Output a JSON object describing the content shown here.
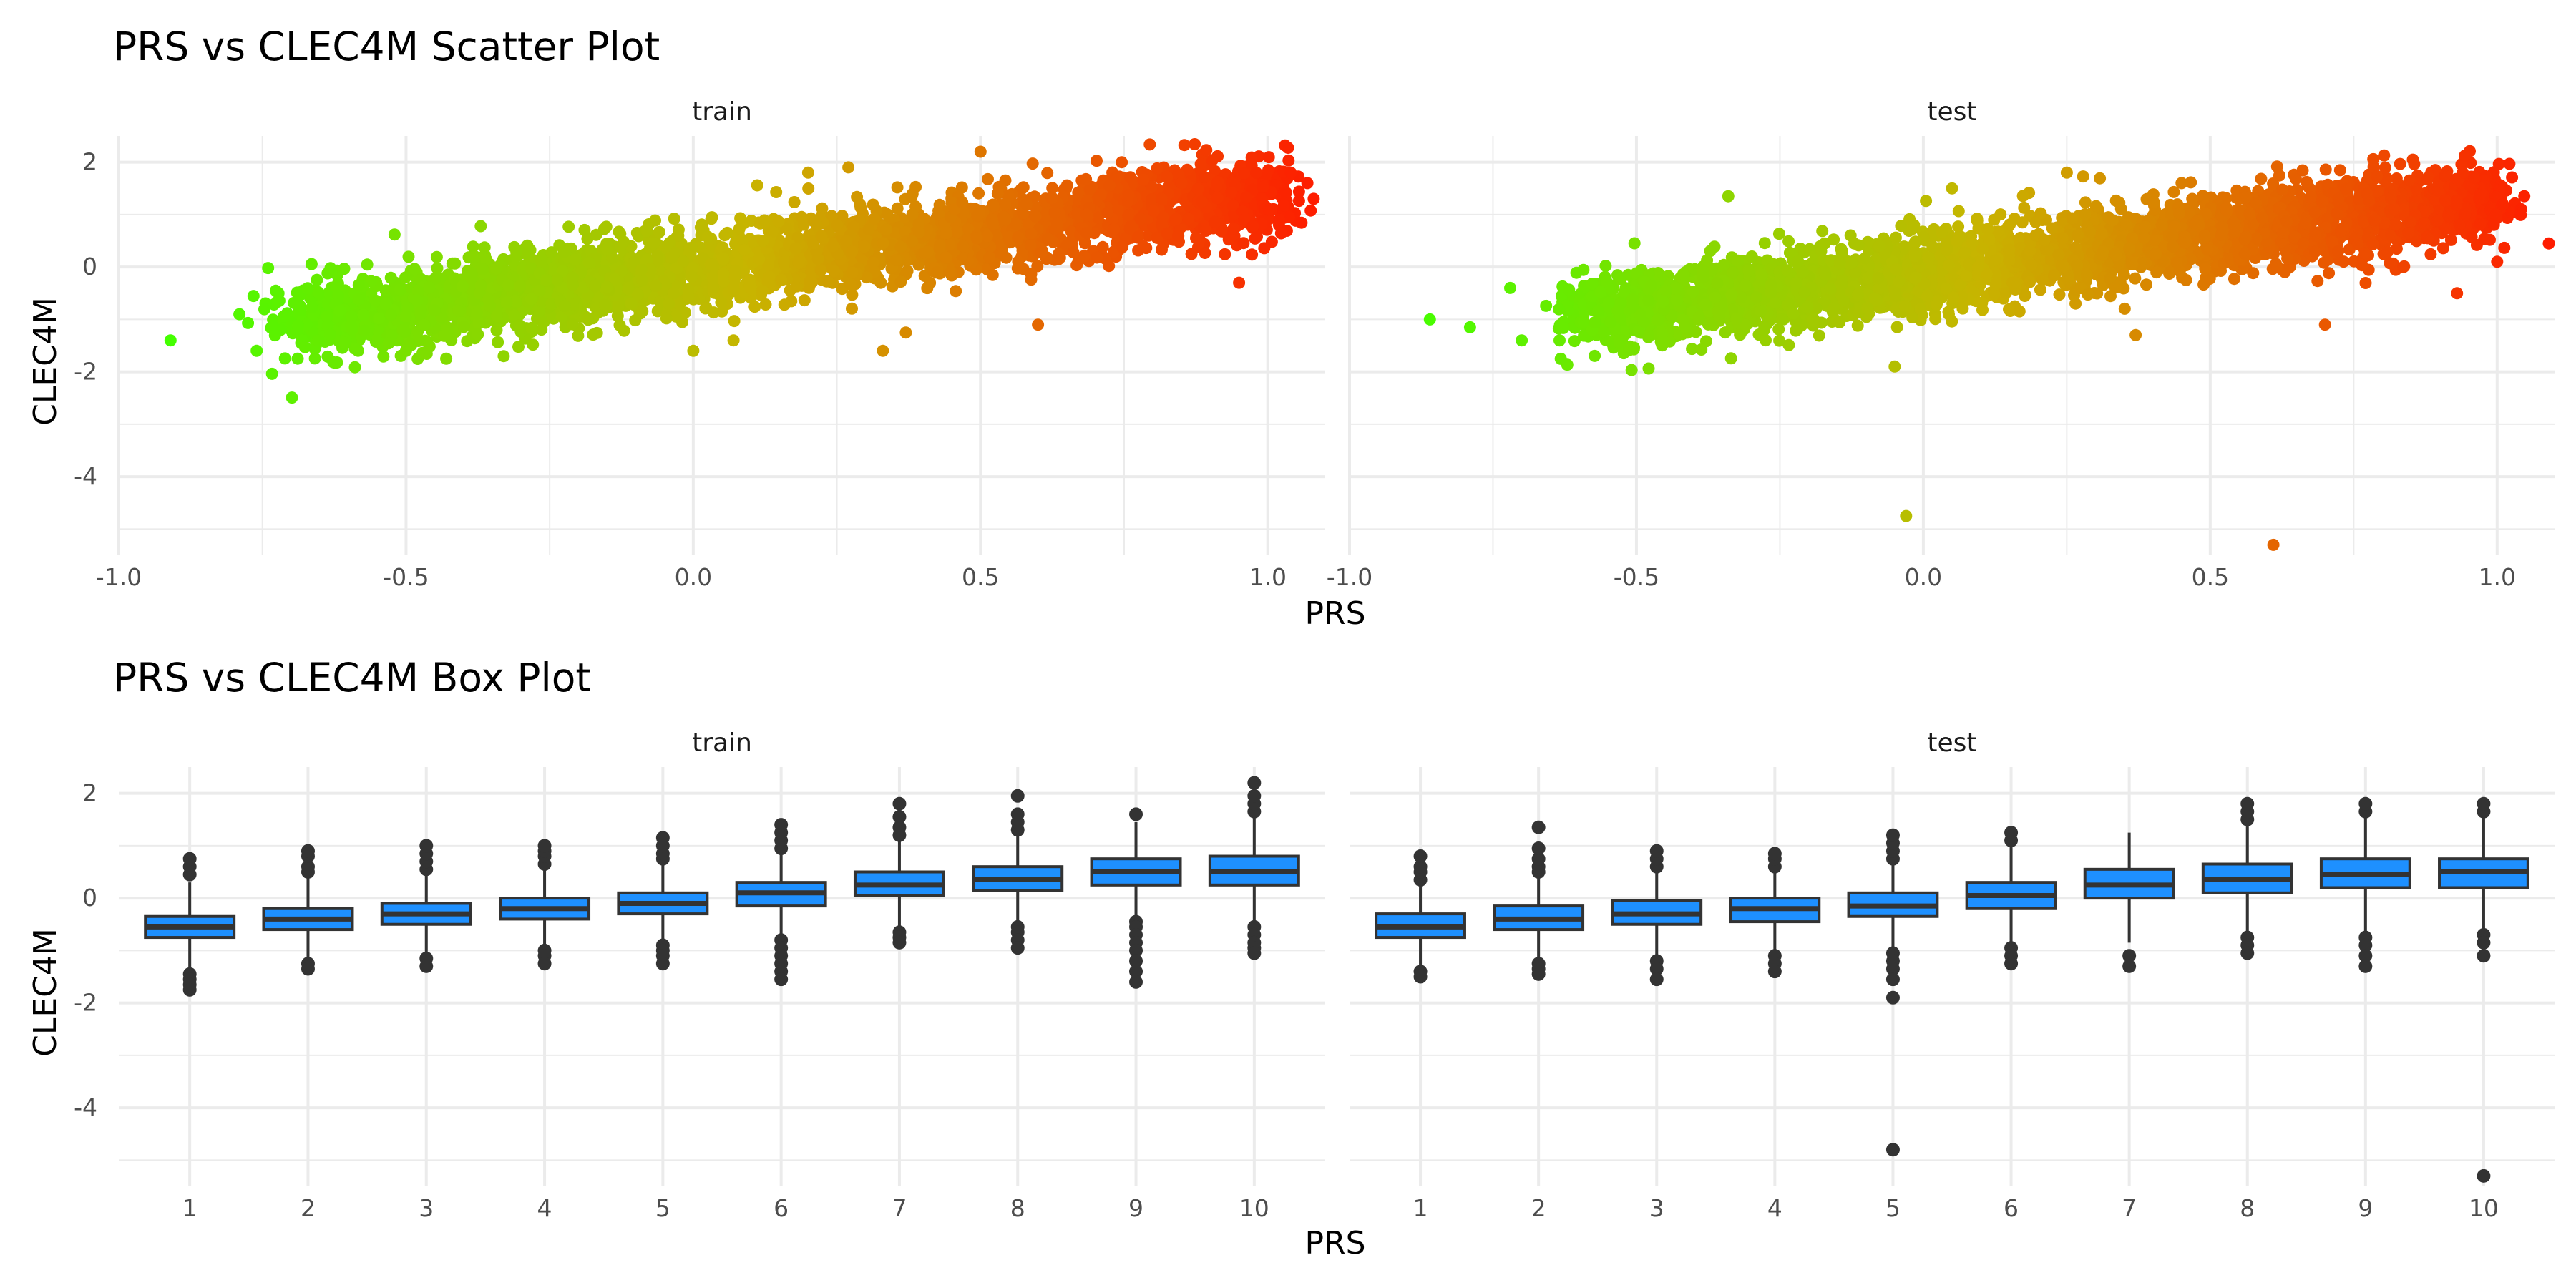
{
  "chart_data": [
    {
      "type": "scatter",
      "title": "PRS vs CLEC4M Scatter Plot",
      "xlabel": "PRS",
      "ylabel": "CLEC4M",
      "xlim": [
        -1.0,
        1.1
      ],
      "ylim": [
        -5.5,
        2.5
      ],
      "x_ticks": [
        -1.0,
        -0.5,
        0.0,
        0.5,
        1.0
      ],
      "x_tick_labels": [
        "-1.0",
        "-0.5",
        "0.0",
        "0.5",
        "1.0"
      ],
      "y_ticks": [
        -4,
        -2,
        0,
        2
      ],
      "y_tick_labels": [
        "-4",
        "-2",
        "0",
        "2"
      ],
      "color_scale": {
        "low": "#44ff00",
        "mid": "#c8b400",
        "high": "#ff1a00",
        "from_x": -0.9,
        "to_x": 1.1
      },
      "grid": true,
      "legend": "none",
      "facets": [
        {
          "name": "train",
          "trend": {
            "intercept": -0.05,
            "slope": 1.45,
            "x_range": [
              -0.7,
              1.03
            ],
            "spread": 0.38
          },
          "points": [
            [
              -0.91,
              -1.4
            ],
            [
              -0.79,
              -0.9
            ],
            [
              -0.76,
              -1.6
            ],
            [
              -0.74,
              -0.02
            ],
            [
              -0.52,
              0.62
            ],
            [
              -0.5,
              -1.6
            ],
            [
              -0.43,
              -1.75
            ],
            [
              -0.37,
              0.78
            ],
            [
              -0.33,
              -1.7
            ],
            [
              0.0,
              -1.6
            ],
            [
              0.07,
              -1.4
            ],
            [
              0.2,
              1.8
            ],
            [
              0.27,
              1.9
            ],
            [
              0.33,
              -1.6
            ],
            [
              0.37,
              -1.25
            ],
            [
              0.5,
              2.2
            ],
            [
              0.53,
              1.4
            ],
            [
              0.6,
              -1.1
            ],
            [
              0.85,
              1.6
            ],
            [
              0.98,
              1.8
            ],
            [
              1.04,
              1.8
            ],
            [
              1.08,
              1.3
            ],
            [
              0.95,
              -0.3
            ],
            [
              1.02,
              0.9
            ]
          ]
        },
        {
          "name": "test",
          "trend": {
            "intercept": -0.1,
            "slope": 1.4,
            "x_range": [
              -0.6,
              1.0
            ],
            "spread": 0.38
          },
          "points": [
            [
              -0.86,
              -1.0
            ],
            [
              -0.79,
              -1.15
            ],
            [
              -0.72,
              -0.4
            ],
            [
              -0.7,
              -1.4
            ],
            [
              -0.34,
              1.35
            ],
            [
              -0.05,
              -1.9
            ],
            [
              -0.03,
              -4.75
            ],
            [
              0.05,
              1.5
            ],
            [
              0.25,
              1.8
            ],
            [
              0.37,
              -1.3
            ],
            [
              0.45,
              1.6
            ],
            [
              0.61,
              -5.3
            ],
            [
              0.7,
              -1.1
            ],
            [
              0.94,
              1.8
            ],
            [
              0.96,
              1.7
            ],
            [
              1.01,
              1.2
            ],
            [
              1.04,
              1.0
            ],
            [
              1.09,
              0.45
            ],
            [
              1.0,
              0.1
            ],
            [
              0.93,
              -0.5
            ]
          ]
        }
      ]
    },
    {
      "type": "box",
      "title": "PRS vs CLEC4M Box Plot",
      "xlabel": "PRS",
      "ylabel": "CLEC4M",
      "categories": [
        "1",
        "2",
        "3",
        "4",
        "5",
        "6",
        "7",
        "8",
        "9",
        "10"
      ],
      "ylim": [
        -5.5,
        2.5
      ],
      "y_ticks": [
        -4,
        -2,
        0,
        2
      ],
      "y_tick_labels": [
        "-4",
        "-2",
        "0",
        "2"
      ],
      "box_color": "#1e90ff",
      "grid": true,
      "legend": "none",
      "facets": [
        {
          "name": "train",
          "boxes": [
            {
              "q1": -0.75,
              "median": -0.55,
              "q3": -0.35,
              "whisker_low": -1.35,
              "whisker_high": 0.3,
              "outliers": [
                -1.45,
                -1.55,
                -1.65,
                -1.75,
                0.45,
                0.6,
                0.75
              ]
            },
            {
              "q1": -0.6,
              "median": -0.4,
              "q3": -0.2,
              "whisker_low": -1.2,
              "whisker_high": 0.4,
              "outliers": [
                -1.25,
                -1.35,
                0.5,
                0.6,
                0.8,
                0.9
              ]
            },
            {
              "q1": -0.5,
              "median": -0.3,
              "q3": -0.1,
              "whisker_low": -1.1,
              "whisker_high": 0.5,
              "outliers": [
                -1.15,
                -1.3,
                0.55,
                0.7,
                0.85,
                1.0
              ]
            },
            {
              "q1": -0.4,
              "median": -0.2,
              "q3": 0.0,
              "whisker_low": -0.95,
              "whisker_high": 0.6,
              "outliers": [
                -1.0,
                -1.1,
                -1.25,
                0.65,
                0.8,
                0.9,
                1.0
              ]
            },
            {
              "q1": -0.3,
              "median": -0.1,
              "q3": 0.1,
              "whisker_low": -0.85,
              "whisker_high": 0.7,
              "outliers": [
                -0.9,
                -1.0,
                -1.1,
                -1.25,
                0.75,
                0.85,
                1.0,
                1.15
              ]
            },
            {
              "q1": -0.15,
              "median": 0.1,
              "q3": 0.3,
              "whisker_low": -0.75,
              "whisker_high": 0.9,
              "outliers": [
                -0.8,
                -0.95,
                -1.1,
                -1.25,
                -1.4,
                -1.55,
                0.95,
                1.1,
                1.25,
                1.4
              ]
            },
            {
              "q1": 0.05,
              "median": 0.25,
              "q3": 0.5,
              "whisker_low": -0.6,
              "whisker_high": 1.1,
              "outliers": [
                -0.65,
                -0.75,
                -0.85,
                1.2,
                1.35,
                1.55,
                1.8
              ]
            },
            {
              "q1": 0.15,
              "median": 0.35,
              "q3": 0.6,
              "whisker_low": -0.5,
              "whisker_high": 1.25,
              "outliers": [
                -0.55,
                -0.65,
                -0.8,
                -0.95,
                1.3,
                1.45,
                1.6,
                1.95
              ]
            },
            {
              "q1": 0.25,
              "median": 0.5,
              "q3": 0.75,
              "whisker_low": -0.4,
              "whisker_high": 1.45,
              "outliers": [
                -0.45,
                -0.55,
                -0.7,
                -0.85,
                -1.0,
                -1.2,
                -1.4,
                -1.6,
                1.6
              ]
            },
            {
              "q1": 0.25,
              "median": 0.5,
              "q3": 0.8,
              "whisker_low": -0.45,
              "whisker_high": 1.55,
              "outliers": [
                -0.55,
                -0.7,
                -0.85,
                -0.95,
                -1.05,
                1.65,
                1.8,
                1.95,
                2.2
              ]
            }
          ]
        },
        {
          "name": "test",
          "boxes": [
            {
              "q1": -0.75,
              "median": -0.55,
              "q3": -0.3,
              "whisker_low": -1.3,
              "whisker_high": 0.25,
              "outliers": [
                -1.4,
                -1.5,
                0.35,
                0.5,
                0.6,
                0.8
              ]
            },
            {
              "q1": -0.6,
              "median": -0.4,
              "q3": -0.15,
              "whisker_low": -1.15,
              "whisker_high": 0.4,
              "outliers": [
                -1.25,
                -1.35,
                -1.45,
                0.5,
                0.6,
                0.75,
                0.95,
                1.35
              ]
            },
            {
              "q1": -0.5,
              "median": -0.3,
              "q3": -0.05,
              "whisker_low": -1.1,
              "whisker_high": 0.5,
              "outliers": [
                -1.2,
                -1.35,
                -1.55,
                0.6,
                0.75,
                0.9
              ]
            },
            {
              "q1": -0.45,
              "median": -0.2,
              "q3": 0.0,
              "whisker_low": -1.0,
              "whisker_high": 0.55,
              "outliers": [
                -1.1,
                -1.25,
                -1.4,
                0.6,
                0.75,
                0.85
              ]
            },
            {
              "q1": -0.35,
              "median": -0.15,
              "q3": 0.1,
              "whisker_low": -0.95,
              "whisker_high": 0.7,
              "outliers": [
                -1.05,
                -1.2,
                -1.35,
                -1.55,
                -1.9,
                -4.8,
                0.75,
                0.9,
                1.05,
                1.2
              ]
            },
            {
              "q1": -0.2,
              "median": 0.05,
              "q3": 0.3,
              "whisker_low": -0.85,
              "whisker_high": 1.0,
              "outliers": [
                -0.95,
                -1.1,
                -1.25,
                1.1,
                1.25
              ]
            },
            {
              "q1": 0.0,
              "median": 0.25,
              "q3": 0.55,
              "whisker_low": -0.85,
              "whisker_high": 1.25,
              "outliers": [
                -1.1,
                -1.3
              ]
            },
            {
              "q1": 0.1,
              "median": 0.35,
              "q3": 0.65,
              "whisker_low": -0.65,
              "whisker_high": 1.4,
              "outliers": [
                -0.75,
                -0.9,
                -1.05,
                1.5,
                1.65,
                1.8
              ]
            },
            {
              "q1": 0.2,
              "median": 0.45,
              "q3": 0.75,
              "whisker_low": -0.65,
              "whisker_high": 1.55,
              "outliers": [
                -0.75,
                -0.9,
                -1.1,
                -1.3,
                1.65,
                1.8
              ]
            },
            {
              "q1": 0.2,
              "median": 0.5,
              "q3": 0.75,
              "whisker_low": -0.6,
              "whisker_high": 1.55,
              "outliers": [
                -0.7,
                -0.85,
                -1.1,
                -5.3,
                1.65,
                1.8
              ]
            }
          ]
        }
      ]
    }
  ]
}
